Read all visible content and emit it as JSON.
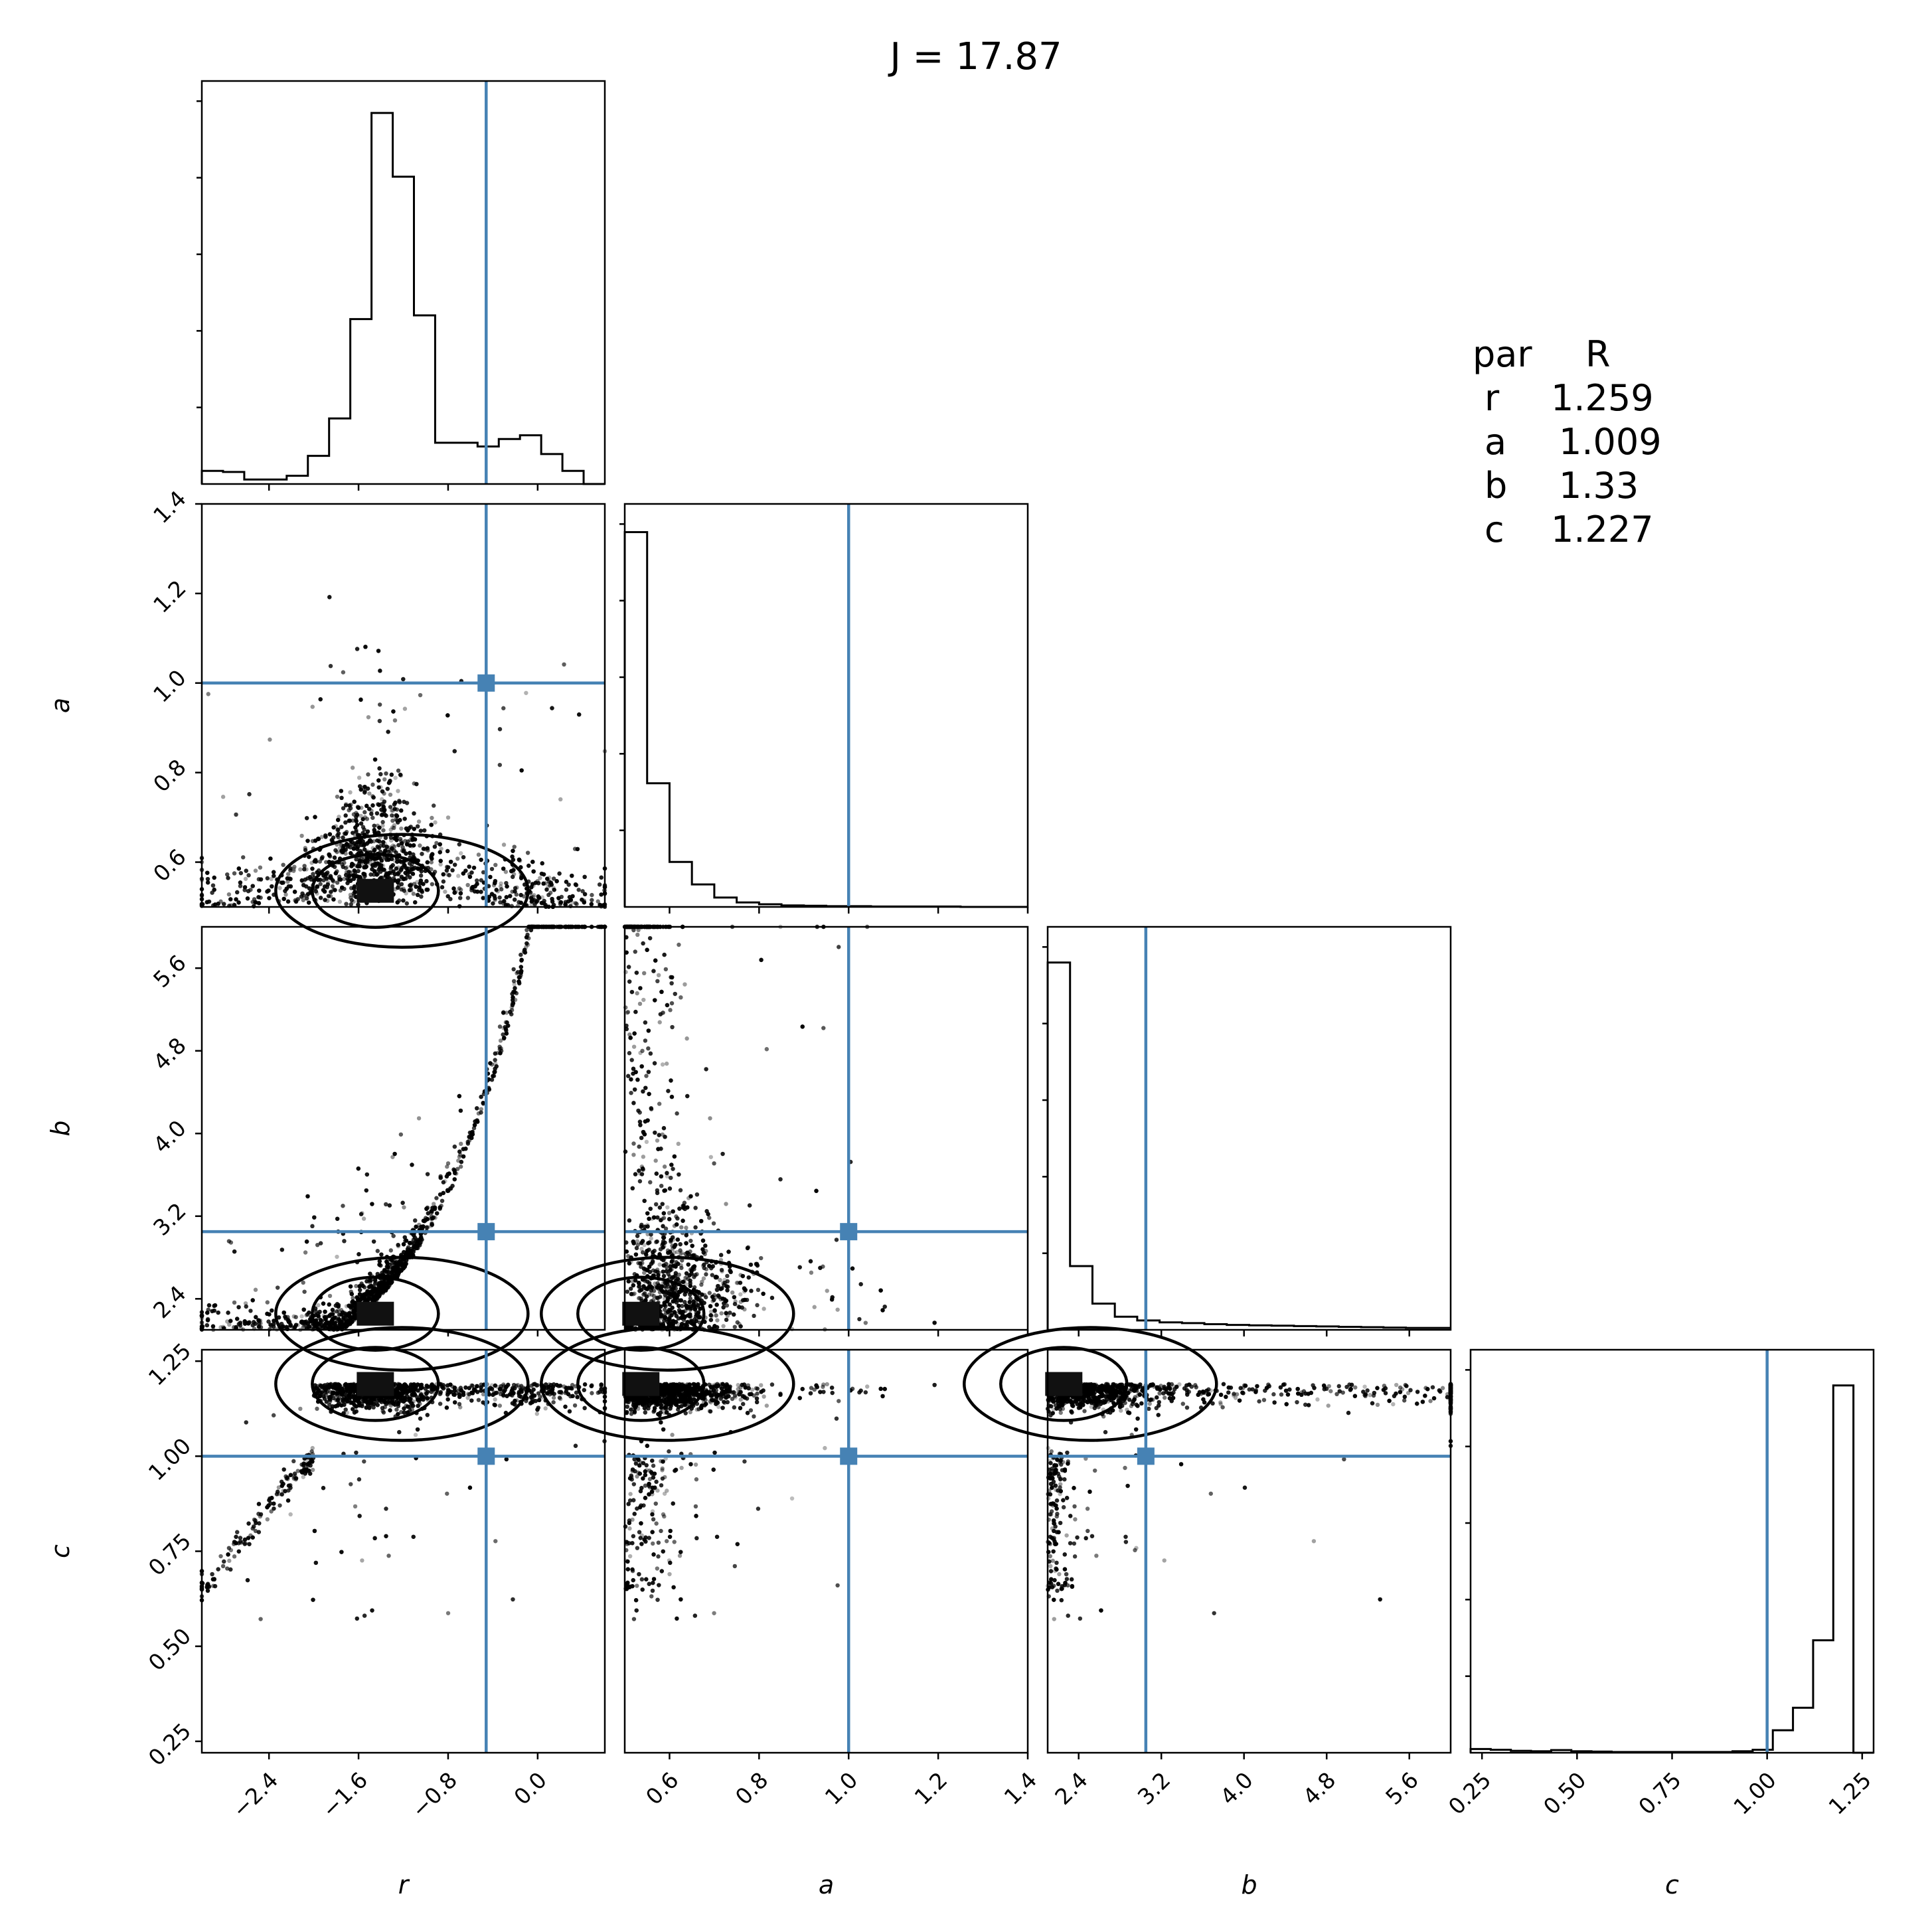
{
  "title": "J = 17.87",
  "colors": {
    "truth": "#4682b4",
    "ink": "#000000"
  },
  "chart_data": {
    "type": "corner",
    "title": "J = 17.87",
    "parameters": [
      {
        "name": "r",
        "label": "r",
        "range": [
          -3.0,
          0.6
        ],
        "ticks": [
          "−2.4",
          "−1.6",
          "−0.8",
          "0.0"
        ],
        "tick_values": [
          -2.4,
          -1.6,
          -0.8,
          0.0
        ],
        "truth": -0.46
      },
      {
        "name": "a",
        "label": "a",
        "range": [
          0.5,
          1.4
        ],
        "ticks": [
          "0.6",
          "0.8",
          "1.0",
          "1.2",
          "1.4"
        ],
        "tick_values": [
          0.6,
          0.8,
          1.0,
          1.2,
          1.4
        ],
        "truth": 1.0
      },
      {
        "name": "b",
        "label": "b",
        "range": [
          2.1,
          6.0
        ],
        "ticks": [
          "2.4",
          "3.2",
          "4.0",
          "4.8",
          "5.6"
        ],
        "tick_values": [
          2.4,
          3.2,
          4.0,
          4.8,
          5.6
        ],
        "truth": 3.05
      },
      {
        "name": "c",
        "label": "c",
        "range": [
          0.22,
          1.28
        ],
        "ticks": [
          "0.25",
          "0.50",
          "0.75",
          "1.00",
          "1.25"
        ],
        "tick_values": [
          0.25,
          0.5,
          0.75,
          1.0,
          1.25
        ],
        "truth": 1.0
      }
    ],
    "histograms": {
      "r": [
        0.035,
        0.032,
        0.012,
        0.012,
        0.022,
        0.075,
        0.175,
        0.44,
        0.99,
        0.82,
        0.45,
        0.11,
        0.11,
        0.1,
        0.12,
        0.13,
        0.08,
        0.035,
        0.0
      ],
      "a": [
        1.0,
        0.33,
        0.12,
        0.06,
        0.025,
        0.012,
        0.007,
        0.004,
        0.003,
        0.002,
        0.002,
        0.001,
        0.001,
        0.001,
        0.001,
        0.0,
        0.0,
        0.0
      ],
      "b": [
        0.98,
        0.17,
        0.07,
        0.035,
        0.025,
        0.02,
        0.018,
        0.015,
        0.013,
        0.012,
        0.011,
        0.01,
        0.009,
        0.008,
        0.007,
        0.006,
        0.005,
        0.005
      ],
      "c": [
        0.01,
        0.008,
        0.005,
        0.004,
        0.007,
        0.004,
        0.003,
        0.002,
        0.002,
        0.002,
        0.002,
        0.002,
        0.002,
        0.004,
        0.008,
        0.06,
        0.12,
        0.3,
        0.98,
        0.0
      ]
    },
    "stats_table": {
      "header": [
        "par",
        "R"
      ],
      "rows": [
        {
          "par": "r",
          "R": "1.259"
        },
        {
          "par": "a",
          "R": "1.009"
        },
        {
          "par": "b",
          "R": "1.33"
        },
        {
          "par": "c",
          "R": "1.227"
        }
      ]
    },
    "legend": "none",
    "grid": false
  }
}
